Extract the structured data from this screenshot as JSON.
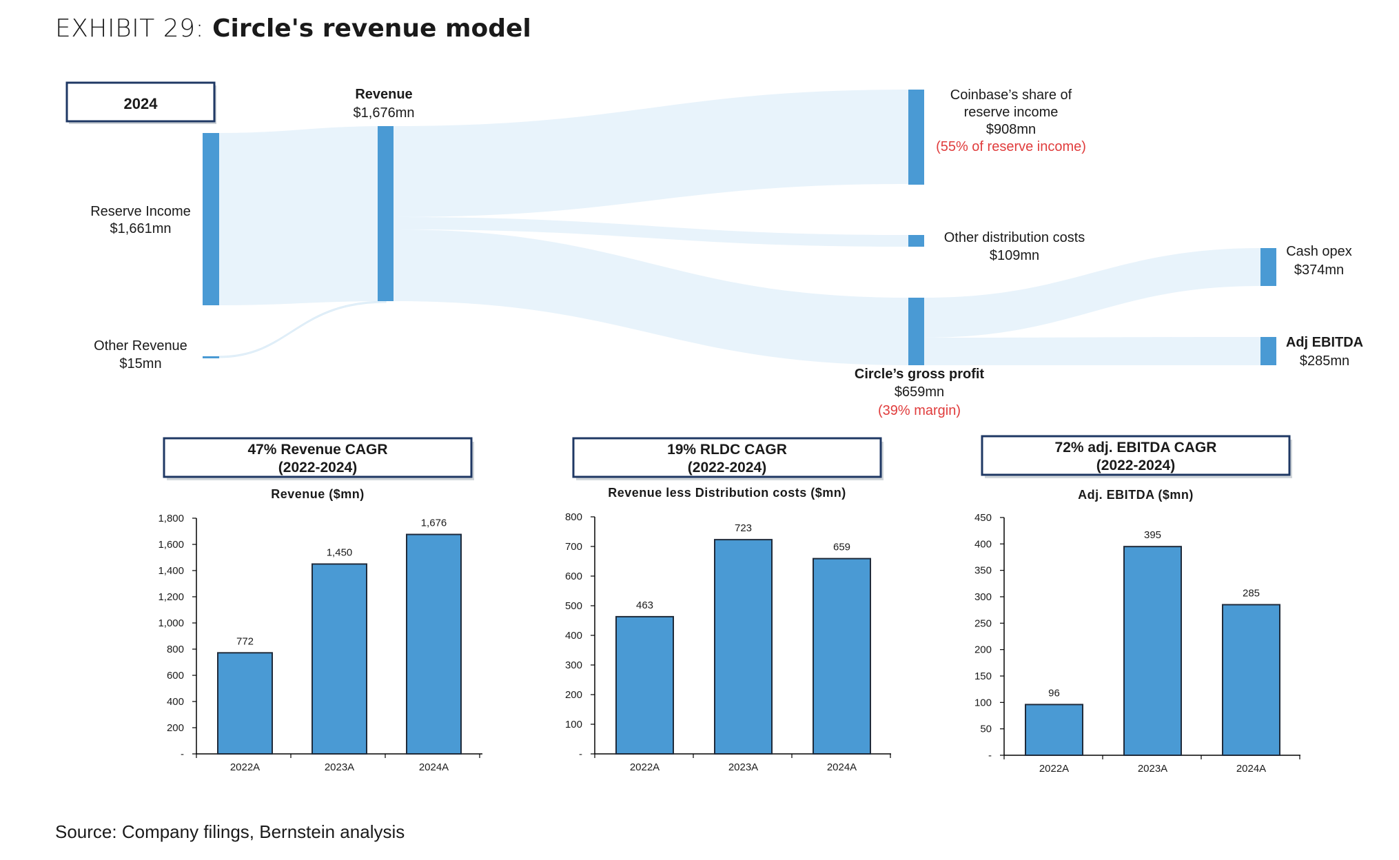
{
  "exhibit": {
    "prefix": "EXHIBIT 29: ",
    "title": "Circle's revenue model"
  },
  "sankey": {
    "year_label": "2024",
    "nodes": {
      "reserve_income": {
        "name": "Reserve Income",
        "value": "$1,661mn"
      },
      "other_revenue": {
        "name": "Other Revenue",
        "value": "$15mn"
      },
      "revenue": {
        "name": "Revenue",
        "value": "$1,676mn"
      },
      "coinbase": {
        "name_line1": "Coinbase’s share of",
        "name_line2": "reserve income",
        "value": "$908mn",
        "note": "(55% of reserve income)"
      },
      "other_distribution": {
        "name": "Other distribution costs",
        "value": "$109mn"
      },
      "gross_profit": {
        "name": "Circle’s gross profit",
        "value": "$659mn",
        "note": "(39% margin)"
      },
      "cash_opex": {
        "name": "Cash opex",
        "value": "$374mn"
      },
      "adj_ebitda": {
        "name": "Adj EBITDA",
        "value": "$285mn"
      }
    }
  },
  "colors": {
    "bar": "#4a9ad4",
    "bar_border": "#1f2a3a",
    "flow": "#e8f3fb",
    "node": "#4a9ad4",
    "note_red": "#e03c3c",
    "box_border": "#1f3864"
  },
  "chart_data": [
    {
      "type": "bar",
      "box_line1": "47% Revenue CAGR",
      "box_line2": "(2022-2024)",
      "title": "Revenue ($mn)",
      "categories": [
        "2022A",
        "2023A",
        "2024A"
      ],
      "values": [
        772,
        1450,
        1676
      ],
      "value_labels": [
        "772",
        "1,450",
        "1,676"
      ],
      "ylim": [
        0,
        1800
      ],
      "yticks": [
        "-",
        "200",
        "400",
        "600",
        "800",
        "1,000",
        "1,200",
        "1,400",
        "1,600",
        "1,800"
      ],
      "grid": false
    },
    {
      "type": "bar",
      "box_line1": "19% RLDC CAGR",
      "box_line2": "(2022-2024)",
      "title": "Revenue less Distribution costs ($mn)",
      "categories": [
        "2022A",
        "2023A",
        "2024A"
      ],
      "values": [
        463,
        723,
        659
      ],
      "value_labels": [
        "463",
        "723",
        "659"
      ],
      "ylim": [
        0,
        800
      ],
      "yticks": [
        "-",
        "100",
        "200",
        "300",
        "400",
        "500",
        "600",
        "700",
        "800"
      ],
      "grid": false
    },
    {
      "type": "bar",
      "box_line1": "72% adj. EBITDA CAGR",
      "box_line2": "(2022-2024)",
      "title": "Adj. EBITDA ($mn)",
      "categories": [
        "2022A",
        "2023A",
        "2024A"
      ],
      "values": [
        96,
        395,
        285
      ],
      "value_labels": [
        "96",
        "395",
        "285"
      ],
      "ylim": [
        0,
        450
      ],
      "yticks": [
        "-",
        "50",
        "100",
        "150",
        "200",
        "250",
        "300",
        "350",
        "400",
        "450"
      ],
      "grid": false
    }
  ],
  "source": "Source: Company filings, Bernstein analysis"
}
